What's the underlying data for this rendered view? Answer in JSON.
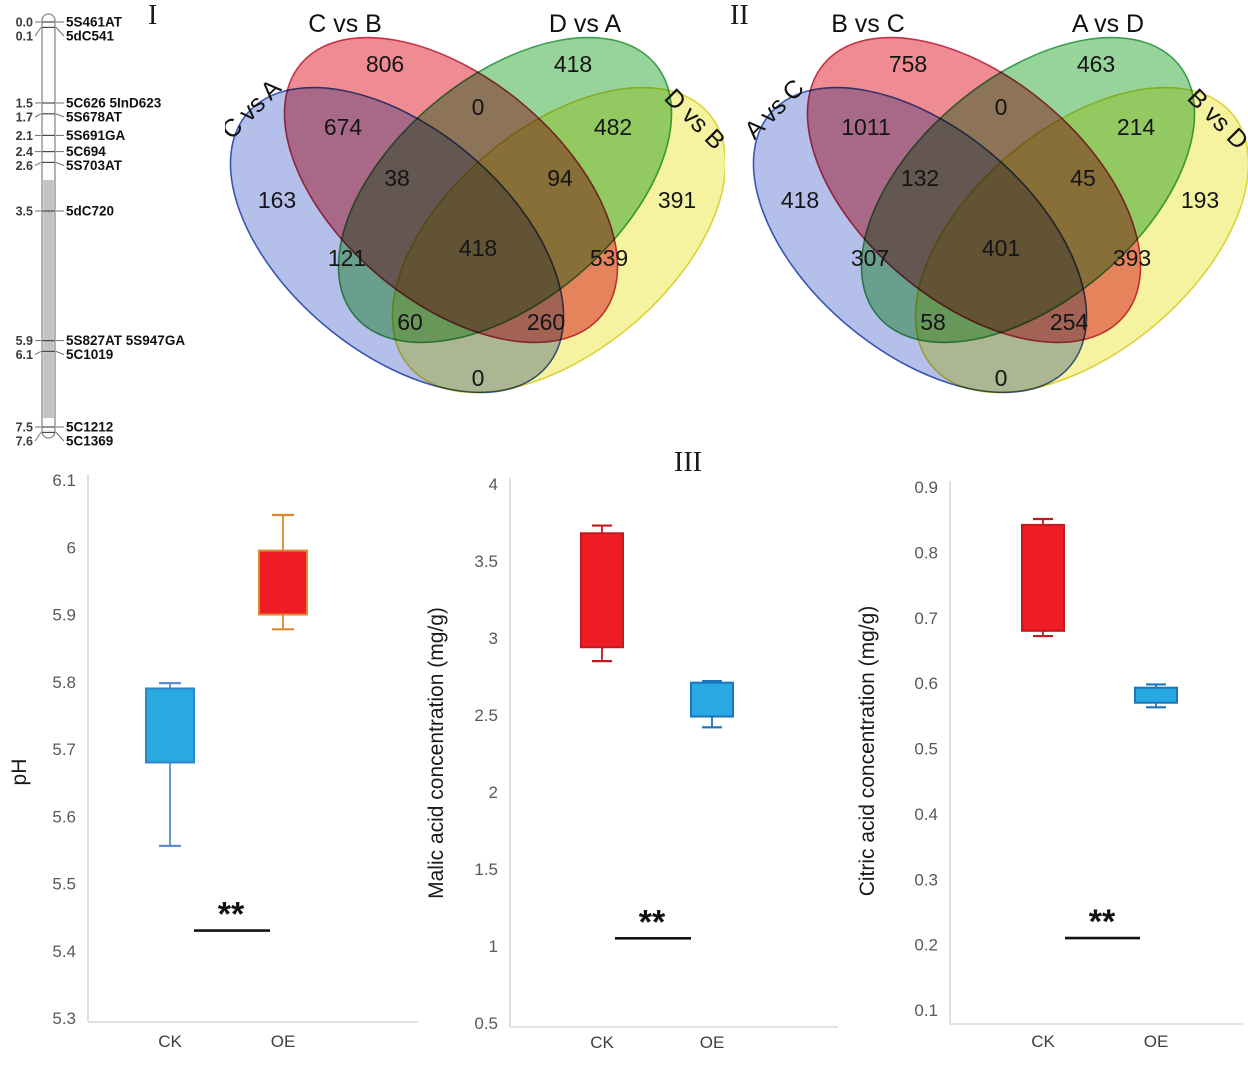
{
  "panels": {
    "panel1": "I",
    "panel2": "II",
    "panel3": "III"
  },
  "linkage_map": {
    "markers": [
      {
        "position_cm": "0.0",
        "name": "5S461AT"
      },
      {
        "position_cm": "0.1",
        "name": "5dC541"
      },
      {
        "position_cm": "1.5",
        "name": "5C626 5InD623"
      },
      {
        "position_cm": "1.7",
        "name": "5S678AT"
      },
      {
        "position_cm": "2.1",
        "name": "5S691GA"
      },
      {
        "position_cm": "2.4",
        "name": "5C694"
      },
      {
        "position_cm": "2.6",
        "name": "5S703AT"
      },
      {
        "position_cm": "3.5",
        "name": "5dC720"
      },
      {
        "position_cm": "5.9",
        "name": "5S827AT 5S947GA"
      },
      {
        "position_cm": "6.1",
        "name": "5C1019"
      },
      {
        "position_cm": "7.5",
        "name": "5C1212"
      },
      {
        "position_cm": "7.6",
        "name": "5C1369"
      }
    ]
  },
  "chart_data": [
    {
      "type": "venn4",
      "panel": "I",
      "sets": {
        "A": "C vs A",
        "B": "C vs B",
        "C": "D vs A",
        "D": "D vs B"
      },
      "regions": {
        "A": 163,
        "B": 806,
        "C": 418,
        "D": 391,
        "AB": 674,
        "AC": 121,
        "AD": 0,
        "BC": 0,
        "BD": 539,
        "CD": 482,
        "ABC": 38,
        "ABD": 260,
        "ACD": 60,
        "BCD": 94,
        "ABCD": 418
      },
      "fill_colors": {
        "A": "#b4bfea",
        "B": "#ee8b93",
        "C": "#97d49a",
        "D": "#f6f3a0"
      },
      "stroke_colors": {
        "A": "#3a57b0",
        "B": "#c43147",
        "C": "#3b9e4d",
        "D": "#dcd23a"
      }
    },
    {
      "type": "venn4",
      "panel": "II",
      "sets": {
        "A": "A vs C",
        "B": "B vs C",
        "C": "A vs D",
        "D": "B vs D"
      },
      "regions": {
        "A": 418,
        "B": 758,
        "C": 463,
        "D": 193,
        "AB": 1011,
        "AC": 307,
        "AD": 0,
        "BC": 0,
        "BD": 393,
        "CD": 214,
        "ABC": 132,
        "ABD": 254,
        "ACD": 58,
        "BCD": 45,
        "ABCD": 401
      },
      "fill_colors": {
        "A": "#b4bfea",
        "B": "#ee8b93",
        "C": "#97d49a",
        "D": "#f6f3a0"
      },
      "stroke_colors": {
        "A": "#3a57b0",
        "B": "#c43147",
        "C": "#3b9e4d",
        "D": "#dcd23a"
      }
    },
    {
      "type": "boxplot",
      "panel": "III",
      "ylabel": "pH",
      "ylim": [
        5.3,
        6.1
      ],
      "ytick_step": 0.1,
      "categories": [
        "CK",
        "OE"
      ],
      "boxes": [
        {
          "category": "CK",
          "q1": 5.68,
          "q3": 5.79,
          "whisker_low": 5.556,
          "whisker_high": 5.798,
          "fill": "#29a9e1",
          "stroke": "#2e86c5",
          "whisker_color": "#5b8fc9"
        },
        {
          "category": "OE",
          "q1": 5.9,
          "q3": 5.995,
          "whisker_low": 5.878,
          "whisker_high": 6.048,
          "fill": "#ee1c25",
          "stroke": "#d98a2e",
          "whisker_color": "#d98a2e"
        }
      ],
      "significance": {
        "label": "**",
        "y": 5.43
      }
    },
    {
      "type": "boxplot",
      "panel": "III",
      "ylabel": "Malic acid concentration (mg/g)",
      "ylim": [
        0.5,
        4
      ],
      "ytick_step": 0.5,
      "categories": [
        "CK",
        "OE"
      ],
      "boxes": [
        {
          "category": "CK",
          "q1": 2.94,
          "q3": 3.68,
          "whisker_low": 2.85,
          "whisker_high": 3.73,
          "fill": "#ee1c25",
          "stroke": "#c2191f",
          "whisker_color": "#c2191f"
        },
        {
          "category": "OE",
          "q1": 2.49,
          "q3": 2.71,
          "whisker_low": 2.42,
          "whisker_high": 2.72,
          "fill": "#29a9e1",
          "stroke": "#1b75bb",
          "whisker_color": "#1b75bb"
        }
      ],
      "significance": {
        "label": "**",
        "y": 1.05
      }
    },
    {
      "type": "boxplot",
      "panel": "III",
      "ylabel": "Citric acid concentration (mg/g)",
      "ylim": [
        0.1,
        0.9
      ],
      "ytick_step": 0.1,
      "categories": [
        "CK",
        "OE"
      ],
      "boxes": [
        {
          "category": "CK",
          "q1": 0.68,
          "q3": 0.842,
          "whisker_low": 0.672,
          "whisker_high": 0.851,
          "fill": "#ee1c25",
          "stroke": "#c2191f",
          "whisker_color": "#c2191f"
        },
        {
          "category": "OE",
          "q1": 0.57,
          "q3": 0.593,
          "whisker_low": 0.563,
          "whisker_high": 0.598,
          "fill": "#29a9e1",
          "stroke": "#1b75bb",
          "whisker_color": "#1b75bb"
        }
      ],
      "significance": {
        "label": "**",
        "y": 0.21
      }
    }
  ]
}
